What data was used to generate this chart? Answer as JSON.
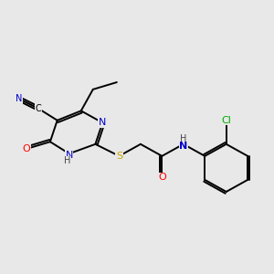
{
  "background_color": "#e8e8e8",
  "bond_color": "#000000",
  "atom_colors": {
    "N": "#0000cc",
    "O": "#ff0000",
    "S": "#ccaa00",
    "Cl": "#00aa00",
    "C": "#000000",
    "H": "#444444"
  },
  "font_size": 8,
  "lw": 1.4
}
